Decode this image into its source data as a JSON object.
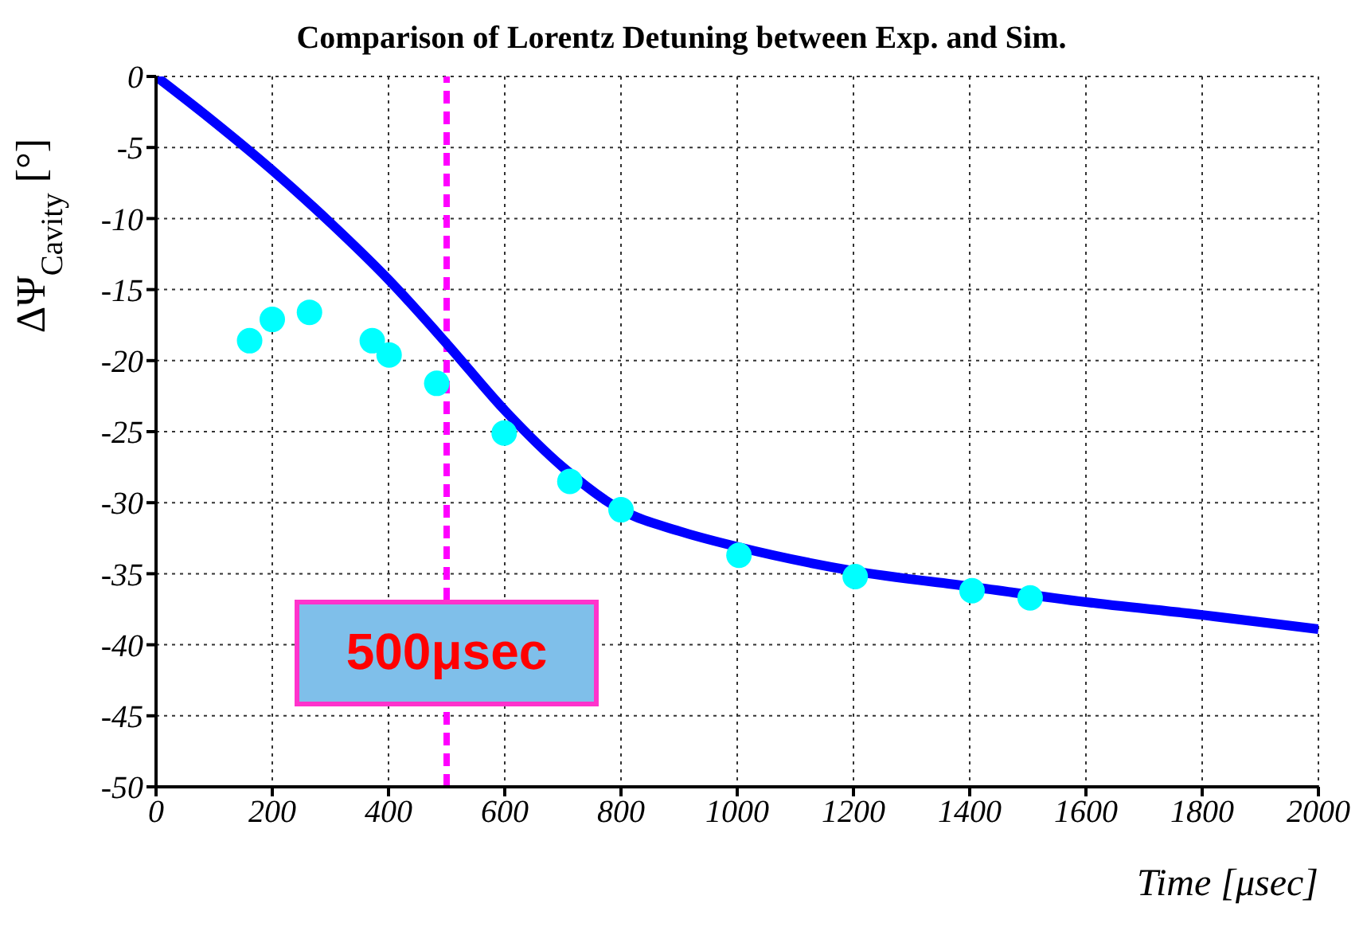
{
  "chart_data": {
    "type": "scatter",
    "title": "Comparison of Lorentz Detuning between Exp. and Sim.",
    "xlabel": "Time [μsec]",
    "ylabel": "ΔΨ$_{Cavity}$ [°]",
    "xlim": [
      0,
      2000
    ],
    "xticks": [
      0,
      200,
      400,
      600,
      800,
      1000,
      1200,
      1400,
      1600,
      1800,
      2000
    ],
    "ylim": [
      -50,
      0
    ],
    "yticks": [
      -50,
      -45,
      -40,
      -35,
      -30,
      -25,
      -20,
      -15,
      -10,
      -5,
      0
    ],
    "grid": true,
    "series": [
      {
        "type": "line",
        "color": "#0000ff",
        "marker": "none",
        "line_style": "solid",
        "x": [
          0,
          100,
          200,
          300,
          400,
          500,
          600,
          700,
          800,
          900,
          1000,
          1200,
          1400,
          1600,
          1800,
          2000
        ],
        "values": [
          0,
          -3.2,
          -6.6,
          -10.3,
          -14.3,
          -18.8,
          -23.5,
          -27.5,
          -30.5,
          -32,
          -33.1,
          -34.8,
          -35.9,
          -37,
          -37.9,
          -38.9
        ]
      },
      {
        "color": "#00ffff",
        "marker": "circle",
        "x": [
          161,
          200,
          264,
          372,
          401,
          483,
          599,
          712,
          800,
          1003,
          1203,
          1404,
          1504
        ],
        "values": [
          -18.6,
          -17.1,
          -16.6,
          -18.6,
          -19.6,
          -21.6,
          -25.1,
          -28.5,
          -30.5,
          -33.7,
          -35.2,
          -36.2,
          -36.7
        ]
      }
    ],
    "ref_lines": [
      {
        "axis": "x",
        "value": 500,
        "label": "500μsec",
        "color": "#ff00ff",
        "line_style": "dashed"
      }
    ]
  }
}
